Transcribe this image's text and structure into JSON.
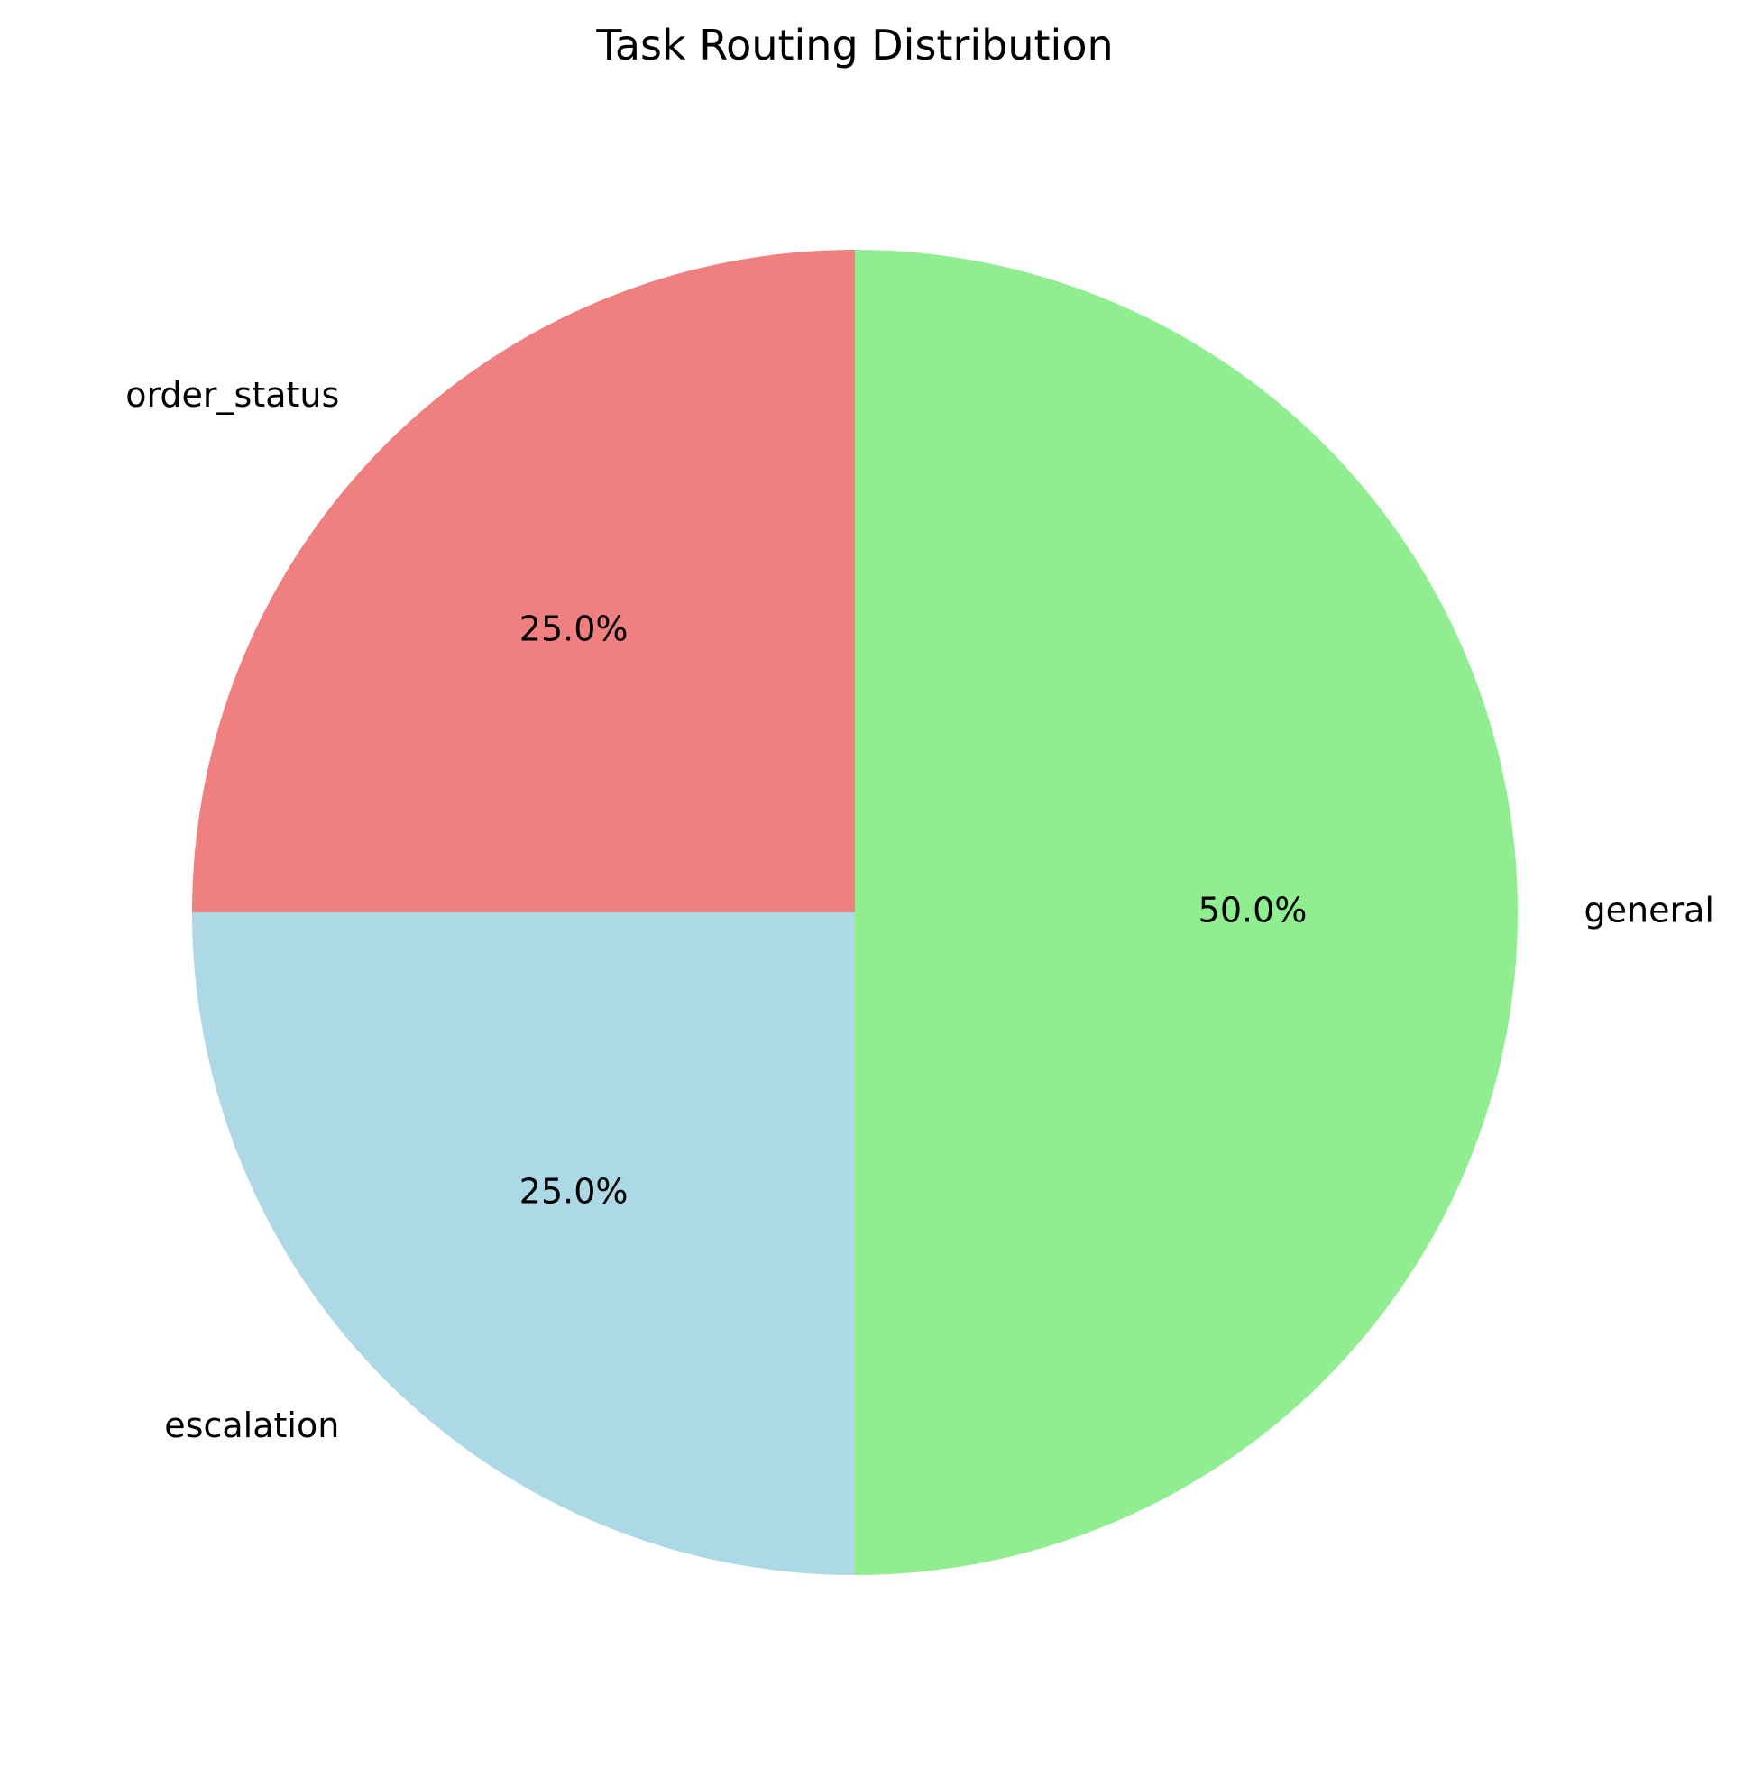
{
  "chart_data": {
    "type": "pie",
    "title": "Task Routing Distribution",
    "categories": [
      "order_status",
      "escalation",
      "general"
    ],
    "values": [
      25.0,
      25.0,
      50.0
    ],
    "percent_labels": [
      "25.0%",
      "25.0%",
      "50.0%"
    ],
    "colors": [
      "#f08080",
      "#add8e6",
      "#90ee90"
    ],
    "start_angle_deg": 90,
    "direction": "counterclockwise",
    "legend": "none"
  }
}
